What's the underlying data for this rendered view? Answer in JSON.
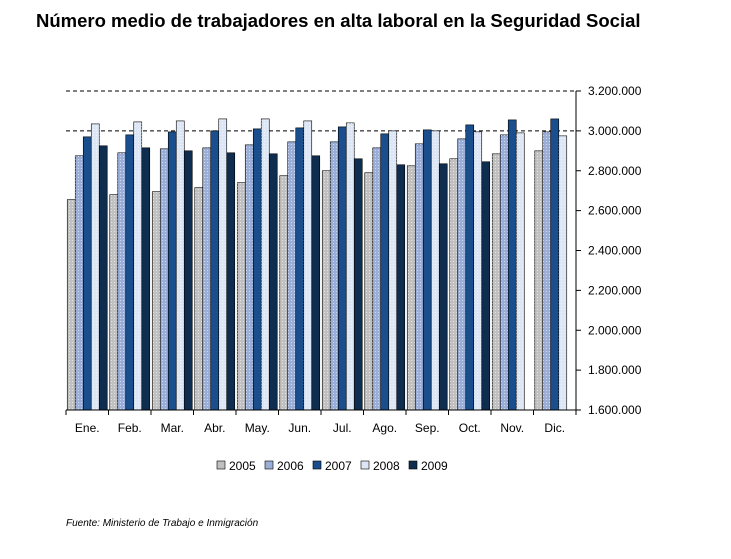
{
  "chart_data": {
    "type": "bar",
    "title": "Número medio de trabajadores en alta laboral en la Seguridad Social",
    "xlabel": "",
    "ylabel": "",
    "ylim": [
      1600000,
      3200000
    ],
    "yticks": [
      "1.600.000",
      "1.800.000",
      "2.000.000",
      "2.200.000",
      "2.400.000",
      "2.600.000",
      "2.800.000",
      "3.000.000",
      "3.200.000"
    ],
    "ytick_values": [
      1600000,
      1800000,
      2000000,
      2200000,
      2400000,
      2600000,
      2800000,
      3000000,
      3200000
    ],
    "y_axis_position": "right",
    "grid": "dashed at 3.000.000 and 3.200.000",
    "legend_position": "bottom",
    "categories": [
      "Ene.",
      "Feb.",
      "Mar.",
      "Abr.",
      "May.",
      "Jun.",
      "Jul.",
      "Ago.",
      "Sep.",
      "Oct.",
      "Nov.",
      "Dic."
    ],
    "series": [
      {
        "name": "2005",
        "color": "#c0c0c0",
        "values": [
          2655000,
          2680000,
          2695000,
          2715000,
          2740000,
          2775000,
          2800000,
          2790000,
          2825000,
          2860000,
          2885000,
          2900000
        ]
      },
      {
        "name": "2006",
        "color": "#9aaed8",
        "values": [
          2875000,
          2890000,
          2910000,
          2915000,
          2930000,
          2945000,
          2945000,
          2915000,
          2935000,
          2960000,
          2980000,
          2995000
        ]
      },
      {
        "name": "2007",
        "color": "#1a4e8c",
        "values": [
          2970000,
          2980000,
          2995000,
          3000000,
          3010000,
          3015000,
          3020000,
          2985000,
          3005000,
          3030000,
          3055000,
          3060000
        ]
      },
      {
        "name": "2008",
        "color": "#dce6f4",
        "values": [
          3035000,
          3045000,
          3050000,
          3060000,
          3060000,
          3050000,
          3040000,
          3000000,
          3000000,
          2995000,
          2990000,
          2975000
        ]
      },
      {
        "name": "2009",
        "color": "#0f2d4f",
        "values": [
          2925000,
          2915000,
          2900000,
          2890000,
          2885000,
          2875000,
          2860000,
          2830000,
          2835000,
          2845000,
          null,
          null
        ]
      }
    ]
  },
  "source": "Fuente: Ministerio de Trabajo e Inmigración"
}
